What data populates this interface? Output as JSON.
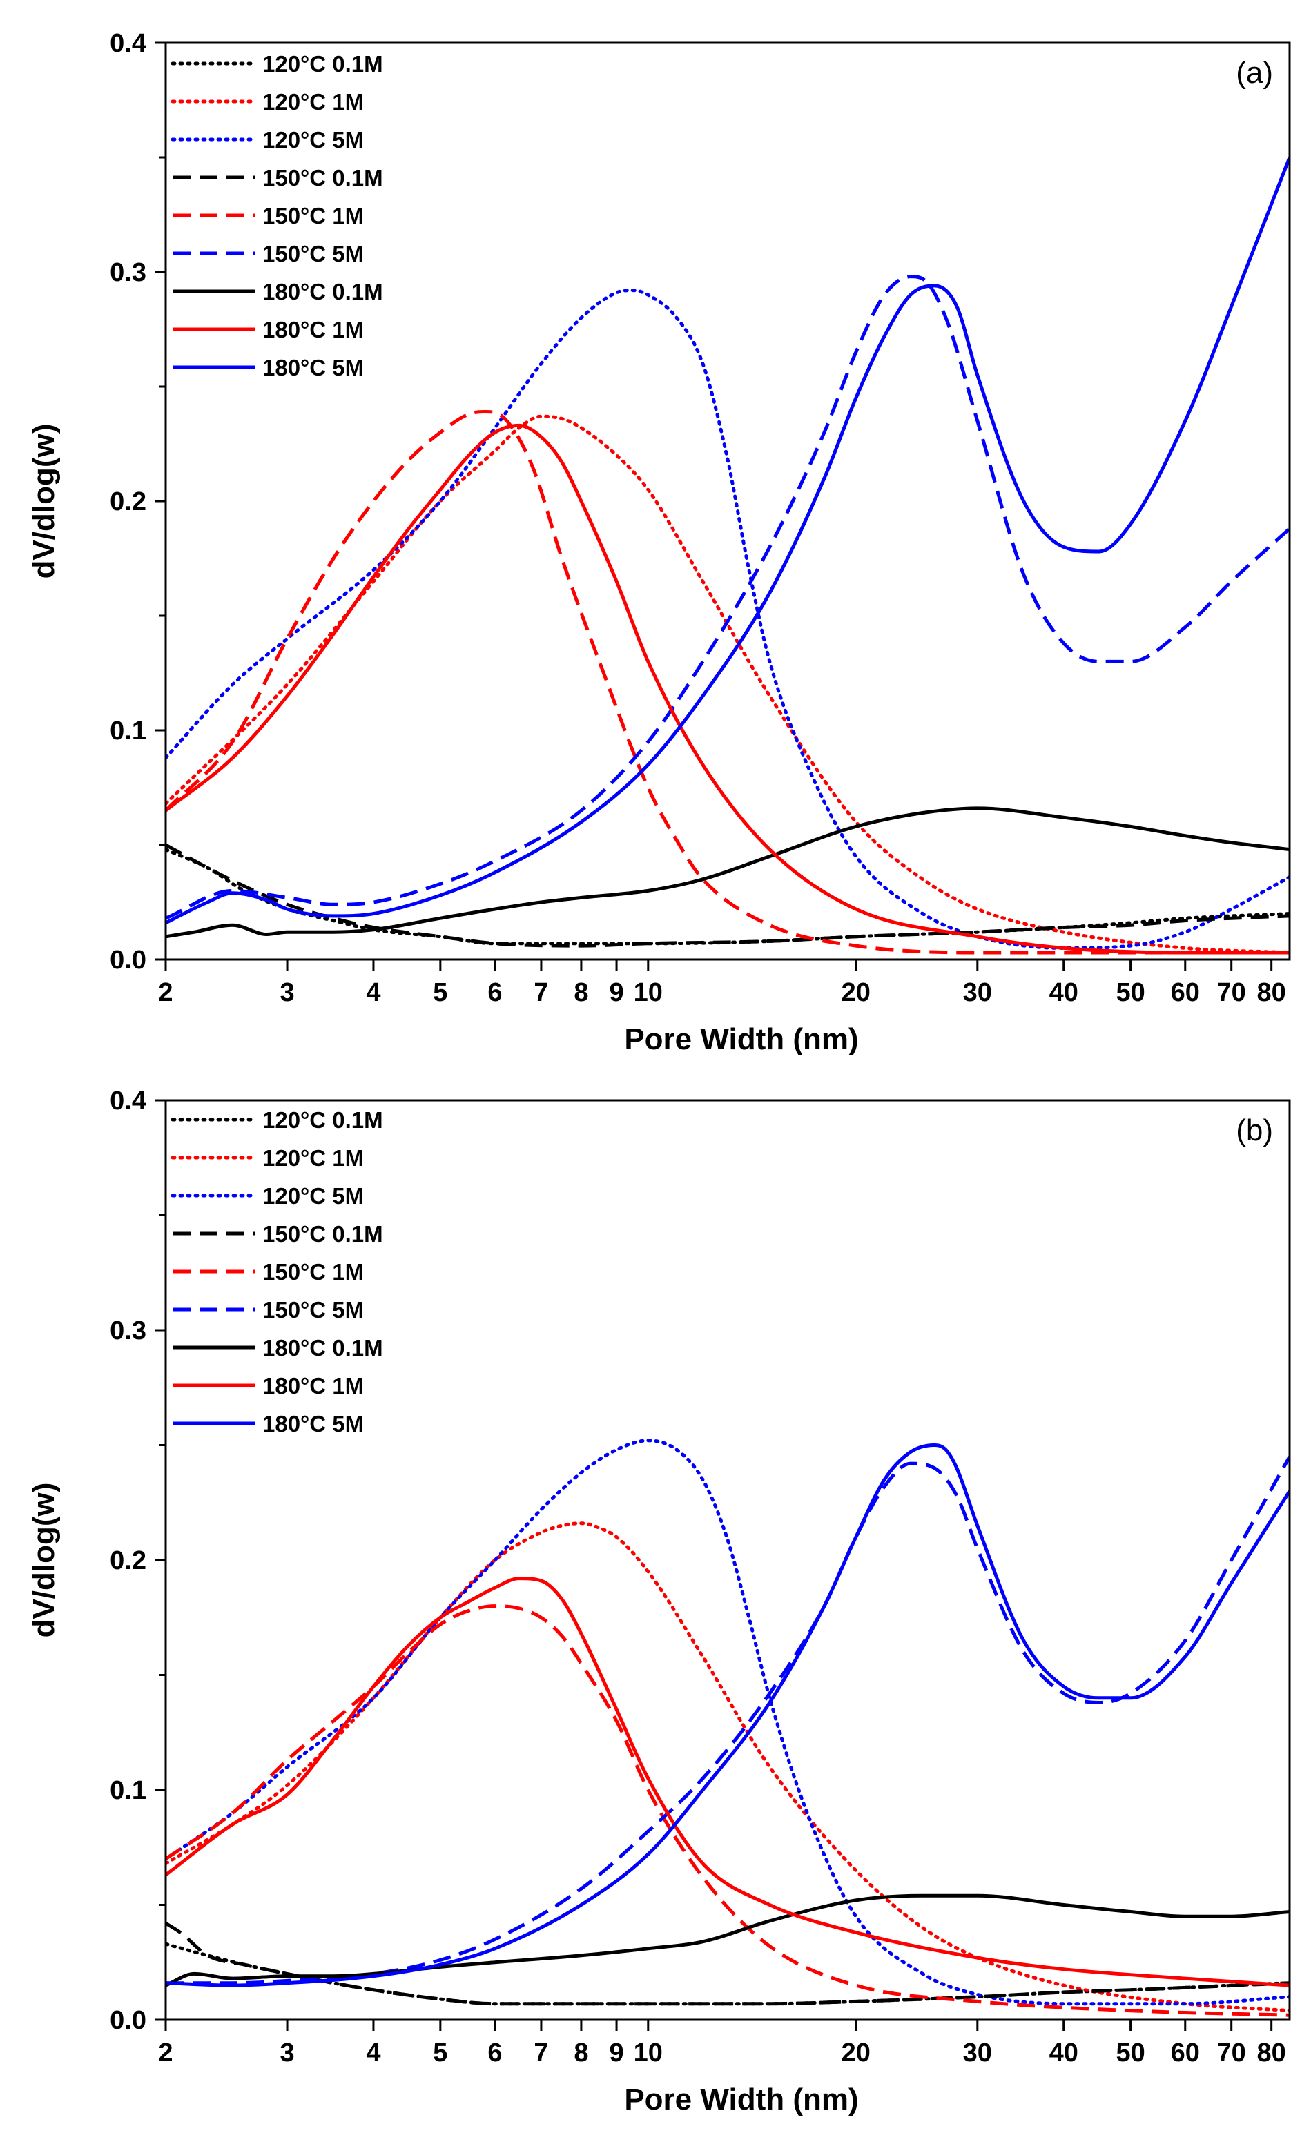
{
  "chart_data": [
    {
      "type": "line",
      "panel_label": "(a)",
      "xlabel": "Pore Width (nm)",
      "ylabel": "dV/dlog(w)",
      "xscale": "log",
      "xlim": [
        2,
        85
      ],
      "ylim": [
        0,
        0.4
      ],
      "xticks": [
        2,
        3,
        4,
        5,
        6,
        7,
        8,
        9,
        10,
        20,
        30,
        40,
        50,
        60,
        70,
        80
      ],
      "xtick_labels": [
        "2",
        "3",
        "4",
        "5",
        "6",
        "7",
        "8",
        "9",
        "10",
        "20",
        "30",
        "40",
        "50",
        "60",
        "70",
        "80"
      ],
      "yticks": [
        0.0,
        0.1,
        0.2,
        0.3,
        0.4
      ],
      "ytick_labels": [
        "0.0",
        "0.1",
        "0.2",
        "0.3",
        "0.4"
      ],
      "legend_position": "top-left",
      "series": [
        {
          "name": "120°C 0.1M",
          "color": "#000000",
          "style": "dotted",
          "x": [
            2,
            2.3,
            2.6,
            3,
            3.5,
            4,
            5,
            6,
            8,
            10,
            15,
            20,
            30,
            40,
            50,
            60,
            70,
            85
          ],
          "y": [
            0.048,
            0.04,
            0.03,
            0.022,
            0.017,
            0.013,
            0.01,
            0.007,
            0.007,
            0.007,
            0.008,
            0.01,
            0.012,
            0.014,
            0.016,
            0.018,
            0.019,
            0.02
          ]
        },
        {
          "name": "120°C 1M",
          "color": "#ff0000",
          "style": "dotted",
          "x": [
            2,
            3,
            4,
            5,
            6,
            6.5,
            7,
            7.5,
            8,
            9,
            10,
            12,
            15,
            20,
            25,
            30,
            40,
            60,
            85
          ],
          "y": [
            0.068,
            0.12,
            0.165,
            0.2,
            0.222,
            0.232,
            0.237,
            0.236,
            0.232,
            0.22,
            0.205,
            0.165,
            0.115,
            0.06,
            0.035,
            0.022,
            0.012,
            0.005,
            0.003
          ]
        },
        {
          "name": "120°C 5M",
          "color": "#0000ff",
          "style": "dotted",
          "x": [
            2,
            2.5,
            3,
            4,
            5,
            6,
            7,
            8,
            9,
            9.5,
            10,
            11,
            12,
            13,
            14,
            15,
            17,
            20,
            25,
            30,
            40,
            50,
            60,
            70,
            85
          ],
          "y": [
            0.088,
            0.12,
            0.14,
            0.17,
            0.2,
            0.232,
            0.26,
            0.28,
            0.291,
            0.292,
            0.29,
            0.28,
            0.26,
            0.22,
            0.17,
            0.13,
            0.085,
            0.045,
            0.02,
            0.01,
            0.005,
            0.006,
            0.012,
            0.022,
            0.036
          ]
        },
        {
          "name": "150°C 0.1M",
          "color": "#000000",
          "style": "dashed",
          "x": [
            2,
            2.3,
            2.6,
            3,
            3.5,
            4,
            5,
            6,
            8,
            10,
            15,
            20,
            30,
            40,
            50,
            60,
            70,
            85
          ],
          "y": [
            0.05,
            0.04,
            0.032,
            0.024,
            0.018,
            0.014,
            0.01,
            0.007,
            0.006,
            0.007,
            0.008,
            0.01,
            0.012,
            0.014,
            0.015,
            0.017,
            0.018,
            0.019
          ]
        },
        {
          "name": "150°C 1M",
          "color": "#ff0000",
          "style": "dashed",
          "x": [
            2,
            2.5,
            3,
            3.5,
            4,
            4.5,
            5,
            5.5,
            5.8,
            6.2,
            6.8,
            7.5,
            8.5,
            10,
            11,
            12,
            15,
            20,
            30,
            50,
            85
          ],
          "y": [
            0.065,
            0.095,
            0.14,
            0.175,
            0.2,
            0.218,
            0.23,
            0.238,
            0.239,
            0.236,
            0.215,
            0.175,
            0.13,
            0.075,
            0.052,
            0.035,
            0.015,
            0.006,
            0.003,
            0.003,
            0.003
          ]
        },
        {
          "name": "150°C 5M",
          "color": "#0000ff",
          "style": "dashed",
          "x": [
            2,
            2.5,
            3,
            3.5,
            4,
            5,
            6,
            8,
            10,
            12,
            15,
            18,
            20,
            22,
            24,
            25,
            27,
            30,
            35,
            40,
            45,
            50,
            60,
            70,
            85
          ],
          "y": [
            0.018,
            0.03,
            0.027,
            0.024,
            0.025,
            0.033,
            0.043,
            0.065,
            0.095,
            0.13,
            0.18,
            0.23,
            0.265,
            0.29,
            0.298,
            0.297,
            0.28,
            0.235,
            0.168,
            0.138,
            0.13,
            0.13,
            0.145,
            0.165,
            0.188
          ]
        },
        {
          "name": "180°C 0.1M",
          "color": "#000000",
          "style": "solid",
          "x": [
            2,
            2.2,
            2.5,
            2.8,
            3,
            3.5,
            4,
            5,
            6,
            7,
            8,
            10,
            12,
            15,
            20,
            25,
            30,
            40,
            50,
            60,
            70,
            85
          ],
          "y": [
            0.01,
            0.012,
            0.015,
            0.011,
            0.012,
            0.012,
            0.013,
            0.018,
            0.022,
            0.025,
            0.027,
            0.03,
            0.035,
            0.045,
            0.058,
            0.064,
            0.066,
            0.062,
            0.058,
            0.054,
            0.051,
            0.048
          ]
        },
        {
          "name": "180°C 1M",
          "color": "#ff0000",
          "style": "solid",
          "x": [
            2,
            2.5,
            3,
            3.5,
            4,
            4.5,
            5,
            5.5,
            6,
            6.5,
            7,
            7.5,
            8,
            9,
            10,
            12,
            15,
            20,
            30,
            40,
            60,
            85
          ],
          "y": [
            0.065,
            0.088,
            0.115,
            0.142,
            0.167,
            0.188,
            0.205,
            0.22,
            0.23,
            0.233,
            0.228,
            0.217,
            0.2,
            0.165,
            0.13,
            0.085,
            0.048,
            0.022,
            0.01,
            0.005,
            0.003,
            0.003
          ]
        },
        {
          "name": "180°C 5M",
          "color": "#0000ff",
          "style": "solid",
          "x": [
            2,
            2.3,
            2.5,
            2.8,
            3,
            3.5,
            4,
            5,
            6,
            8,
            10,
            12,
            15,
            18,
            20,
            22,
            24,
            26,
            28,
            30,
            35,
            40,
            45,
            50,
            60,
            70,
            85
          ],
          "y": [
            0.016,
            0.025,
            0.029,
            0.026,
            0.022,
            0.019,
            0.02,
            0.028,
            0.038,
            0.06,
            0.085,
            0.115,
            0.16,
            0.21,
            0.245,
            0.272,
            0.29,
            0.294,
            0.285,
            0.255,
            0.2,
            0.18,
            0.178,
            0.19,
            0.235,
            0.285,
            0.35
          ]
        }
      ]
    },
    {
      "type": "line",
      "panel_label": "(b)",
      "xlabel": "Pore Width (nm)",
      "ylabel": "dV/dlog(w)",
      "xscale": "log",
      "xlim": [
        2,
        85
      ],
      "ylim": [
        0,
        0.4
      ],
      "xticks": [
        2,
        3,
        4,
        5,
        6,
        7,
        8,
        9,
        10,
        20,
        30,
        40,
        50,
        60,
        70,
        80
      ],
      "xtick_labels": [
        "2",
        "3",
        "4",
        "5",
        "6",
        "7",
        "8",
        "9",
        "10",
        "20",
        "30",
        "40",
        "50",
        "60",
        "70",
        "80"
      ],
      "yticks": [
        0.0,
        0.1,
        0.2,
        0.3,
        0.4
      ],
      "ytick_labels": [
        "0.0",
        "0.1",
        "0.2",
        "0.3",
        "0.4"
      ],
      "legend_position": "top-left",
      "series": [
        {
          "name": "120°C 0.1M",
          "color": "#000000",
          "style": "dotted",
          "x": [
            2,
            2.3,
            2.6,
            3,
            3.5,
            4,
            5,
            6,
            8,
            10,
            15,
            20,
            30,
            40,
            50,
            60,
            70,
            85
          ],
          "y": [
            0.033,
            0.028,
            0.024,
            0.02,
            0.016,
            0.013,
            0.009,
            0.007,
            0.007,
            0.007,
            0.007,
            0.008,
            0.01,
            0.012,
            0.013,
            0.014,
            0.015,
            0.016
          ]
        },
        {
          "name": "120°C 1M",
          "color": "#ff0000",
          "style": "dotted",
          "x": [
            2,
            2.5,
            3,
            4,
            5,
            6,
            7,
            7.5,
            8,
            8.5,
            9,
            10,
            12,
            15,
            20,
            25,
            30,
            40,
            60,
            85
          ],
          "y": [
            0.068,
            0.085,
            0.102,
            0.14,
            0.175,
            0.2,
            0.212,
            0.215,
            0.216,
            0.214,
            0.21,
            0.195,
            0.158,
            0.11,
            0.065,
            0.04,
            0.027,
            0.015,
            0.007,
            0.004
          ]
        },
        {
          "name": "120°C 5M",
          "color": "#0000ff",
          "style": "dotted",
          "x": [
            2,
            2.5,
            3,
            4,
            5,
            6,
            7,
            8,
            9,
            10,
            11,
            12,
            13,
            14,
            15,
            17,
            20,
            25,
            30,
            40,
            60,
            85
          ],
          "y": [
            0.07,
            0.09,
            0.11,
            0.14,
            0.175,
            0.2,
            0.222,
            0.238,
            0.248,
            0.252,
            0.248,
            0.235,
            0.21,
            0.175,
            0.14,
            0.09,
            0.045,
            0.02,
            0.011,
            0.007,
            0.007,
            0.01
          ]
        },
        {
          "name": "150°C 0.1M",
          "color": "#000000",
          "style": "dashed",
          "x": [
            2,
            2.1,
            2.3,
            2.6,
            3,
            3.5,
            4,
            5,
            6,
            8,
            10,
            15,
            20,
            30,
            40,
            50,
            60,
            85
          ],
          "y": [
            0.042,
            0.038,
            0.028,
            0.024,
            0.02,
            0.016,
            0.013,
            0.009,
            0.007,
            0.007,
            0.007,
            0.007,
            0.008,
            0.01,
            0.012,
            0.013,
            0.014,
            0.016
          ]
        },
        {
          "name": "150°C 1M",
          "color": "#ff0000",
          "style": "dashed",
          "x": [
            2,
            2.5,
            3,
            3.5,
            4,
            4.5,
            5,
            5.5,
            6,
            6.5,
            7,
            7.5,
            8,
            9,
            10,
            12,
            15,
            20,
            30,
            50,
            85
          ],
          "y": [
            0.07,
            0.09,
            0.113,
            0.13,
            0.145,
            0.16,
            0.172,
            0.178,
            0.18,
            0.179,
            0.175,
            0.167,
            0.155,
            0.13,
            0.1,
            0.062,
            0.032,
            0.015,
            0.008,
            0.004,
            0.002
          ]
        },
        {
          "name": "150°C 5M",
          "color": "#0000ff",
          "style": "dashed",
          "x": [
            2,
            2.5,
            3,
            4,
            5,
            6,
            8,
            10,
            12,
            15,
            18,
            20,
            22,
            24,
            26,
            28,
            30,
            35,
            40,
            45,
            50,
            60,
            70,
            85
          ],
          "y": [
            0.016,
            0.016,
            0.017,
            0.02,
            0.026,
            0.035,
            0.057,
            0.082,
            0.105,
            0.142,
            0.18,
            0.21,
            0.232,
            0.242,
            0.24,
            0.228,
            0.205,
            0.16,
            0.142,
            0.138,
            0.142,
            0.165,
            0.2,
            0.245
          ]
        },
        {
          "name": "180°C 0.1M",
          "color": "#000000",
          "style": "solid",
          "x": [
            2,
            2.2,
            2.5,
            3,
            3.5,
            4,
            5,
            6,
            8,
            10,
            12,
            15,
            20,
            25,
            30,
            40,
            50,
            60,
            70,
            85
          ],
          "y": [
            0.015,
            0.02,
            0.018,
            0.019,
            0.019,
            0.02,
            0.023,
            0.025,
            0.028,
            0.031,
            0.034,
            0.043,
            0.052,
            0.054,
            0.054,
            0.05,
            0.047,
            0.045,
            0.045,
            0.047
          ]
        },
        {
          "name": "180°C 1M",
          "color": "#ff0000",
          "style": "solid",
          "x": [
            2,
            2.5,
            3,
            3.5,
            4,
            4.5,
            5,
            5.5,
            6,
            6.5,
            7,
            7.5,
            8,
            9,
            10,
            12,
            15,
            20,
            30,
            40,
            60,
            85
          ],
          "y": [
            0.063,
            0.085,
            0.098,
            0.122,
            0.145,
            0.163,
            0.175,
            0.182,
            0.188,
            0.192,
            0.191,
            0.183,
            0.168,
            0.135,
            0.105,
            0.068,
            0.05,
            0.038,
            0.027,
            0.022,
            0.018,
            0.015
          ]
        },
        {
          "name": "180°C 5M",
          "color": "#0000ff",
          "style": "solid",
          "x": [
            2,
            2.5,
            3,
            4,
            5,
            6,
            8,
            10,
            12,
            15,
            18,
            20,
            22,
            24,
            26,
            27,
            28,
            30,
            35,
            40,
            45,
            50,
            60,
            70,
            85
          ],
          "y": [
            0.016,
            0.015,
            0.016,
            0.019,
            0.024,
            0.031,
            0.05,
            0.072,
            0.1,
            0.138,
            0.18,
            0.21,
            0.235,
            0.247,
            0.25,
            0.248,
            0.24,
            0.215,
            0.165,
            0.145,
            0.14,
            0.14,
            0.158,
            0.19,
            0.23
          ]
        }
      ]
    }
  ]
}
